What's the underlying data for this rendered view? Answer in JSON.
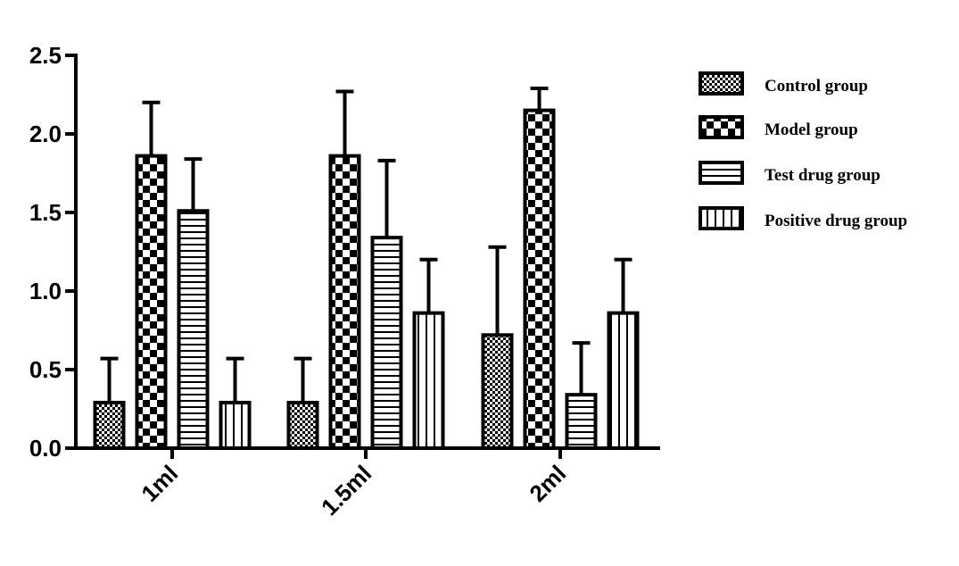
{
  "chart_data": {
    "type": "bar",
    "categories": [
      "1ml",
      "1.5ml",
      "2ml"
    ],
    "series": [
      {
        "name": "Control group",
        "color": "#000000",
        "pattern": "fine-checker",
        "values": [
          0.29,
          0.29,
          0.72
        ],
        "errors": [
          0.28,
          0.28,
          0.56
        ]
      },
      {
        "name": "Model group",
        "color": "#000000",
        "pattern": "checker",
        "values": [
          1.86,
          1.86,
          2.15
        ],
        "errors": [
          0.34,
          0.41,
          0.14
        ]
      },
      {
        "name": "Test drug group",
        "color": "#000000",
        "pattern": "horizontal-lines",
        "values": [
          1.51,
          1.34,
          0.34
        ],
        "errors": [
          0.33,
          0.49,
          0.33
        ]
      },
      {
        "name": "Positive drug group",
        "color": "#000000",
        "pattern": "vertical-lines",
        "values": [
          0.29,
          0.86,
          0.86
        ],
        "errors": [
          0.28,
          0.34,
          0.34
        ]
      }
    ],
    "ylim": [
      0,
      2.5
    ],
    "yticks": [
      {
        "value": 0,
        "label": "0.0"
      },
      0.5,
      {
        "value": 1,
        "label": "1.0"
      },
      1.5,
      {
        "value": 2,
        "label": "2.0"
      },
      2.5
    ],
    "grid": false,
    "legend": "right"
  }
}
